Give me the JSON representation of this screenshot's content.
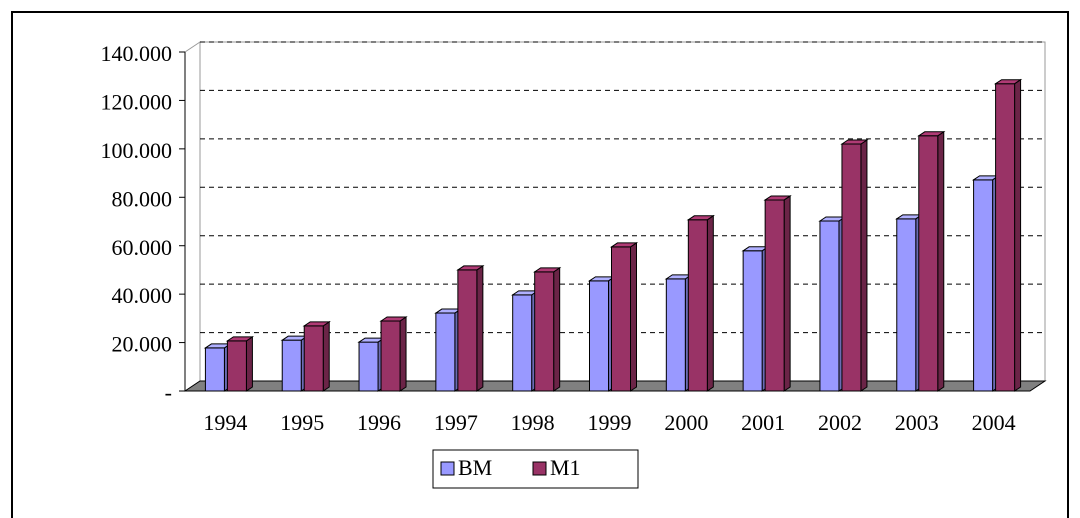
{
  "chart_data": {
    "type": "bar",
    "categories": [
      "1994",
      "1995",
      "1996",
      "1997",
      "1998",
      "1999",
      "2000",
      "2001",
      "2002",
      "2003",
      "2004"
    ],
    "series": [
      {
        "name": "BM",
        "color": "#9999ff",
        "values": [
          17800,
          21000,
          20200,
          32200,
          39700,
          45500,
          46300,
          57900,
          70200,
          71100,
          87200
        ]
      },
      {
        "name": "M1",
        "color": "#993366",
        "values": [
          20700,
          26900,
          28900,
          50000,
          49200,
          59500,
          70700,
          78900,
          102000,
          105400,
          126900
        ]
      }
    ],
    "ylim": [
      0,
      140000
    ],
    "yticks": [
      {
        "value": 0,
        "label": "-"
      },
      {
        "value": 20000,
        "label": "20.000"
      },
      {
        "value": 40000,
        "label": "40.000"
      },
      {
        "value": 60000,
        "label": "60.000"
      },
      {
        "value": 80000,
        "label": "80.000"
      },
      {
        "value": 100000,
        "label": "100.000"
      },
      {
        "value": 120000,
        "label": "120.000"
      },
      {
        "value": 140000,
        "label": "140.000"
      }
    ],
    "grid": true
  }
}
